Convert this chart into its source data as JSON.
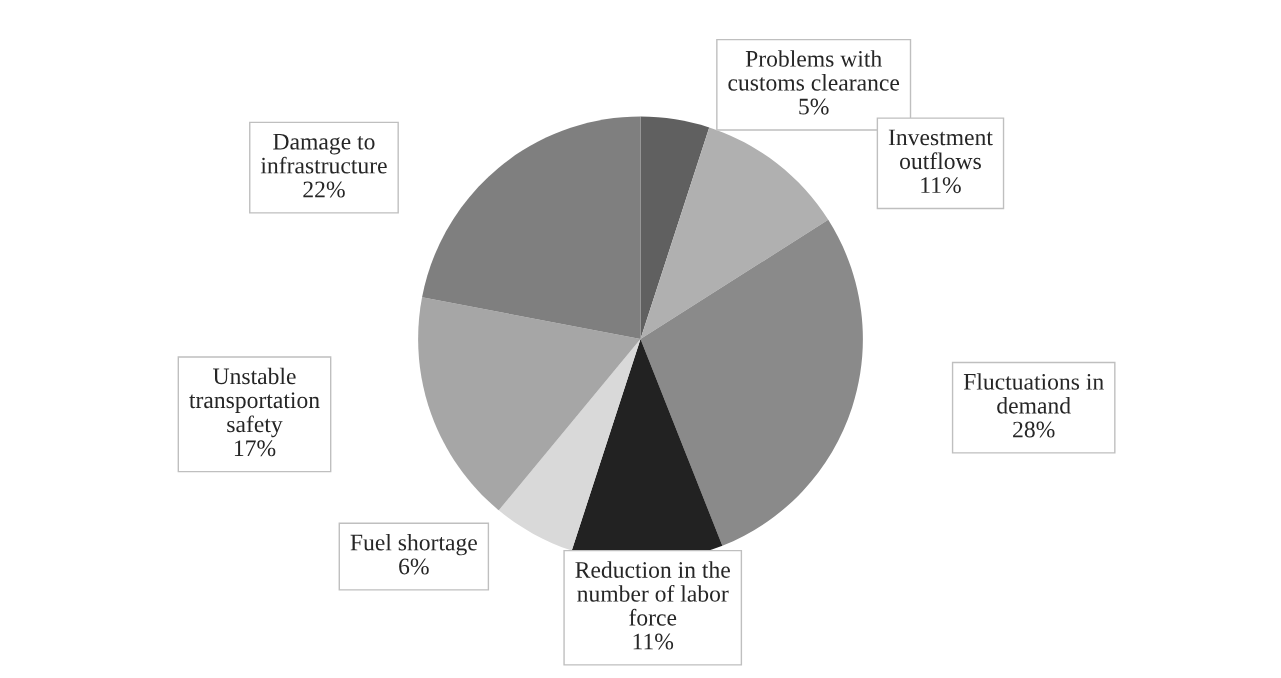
{
  "chart_data": {
    "type": "pie",
    "categories": [
      "Problems with customs clearance",
      "Investment outflows",
      "Fluctuations in demand",
      "Reduction in the number of labor force",
      "Fuel shortage",
      "Unstable transportation safety",
      "Damage to infrastructure"
    ],
    "values": [
      5,
      11,
      28,
      11,
      6,
      17,
      22
    ],
    "colors": [
      "#606060",
      "#b0b0b0",
      "#8a8a8a",
      "#222222",
      "#d9d9d9",
      "#a6a6a6",
      "#7f7f7f"
    ],
    "value_labels": [
      "5%",
      "11%",
      "28%",
      "11%",
      "6%",
      "17%",
      "22%"
    ],
    "data_labels": true,
    "legend": false
  }
}
